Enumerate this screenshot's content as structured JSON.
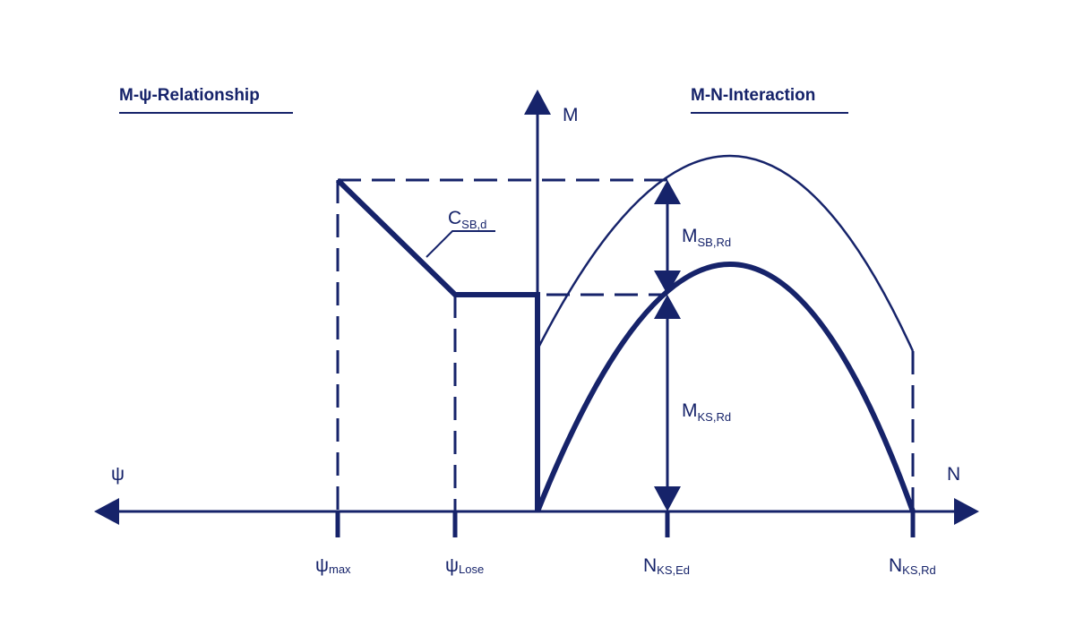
{
  "colors": {
    "ink": "#16236a",
    "background": "#ffffff"
  },
  "titles": {
    "left": "M-ψ-Relationship",
    "right": "M-N-Interaction"
  },
  "axes": {
    "vertical": "M",
    "left": "ψ",
    "right": "N"
  },
  "labels": {
    "c_sb_d": {
      "main": "C",
      "sub": "SB,d"
    },
    "m_sb_rd": {
      "main": "M",
      "sub": "SB,Rd"
    },
    "m_ks_rd": {
      "main": "M",
      "sub": "KS,Rd"
    }
  },
  "ticks": [
    {
      "main": "ψ",
      "sub": "max"
    },
    {
      "main": "ψ",
      "sub": "Lose"
    },
    {
      "main": "N",
      "sub": "KS,Ed"
    },
    {
      "main": "N",
      "sub": "KS,Rd"
    }
  ]
}
